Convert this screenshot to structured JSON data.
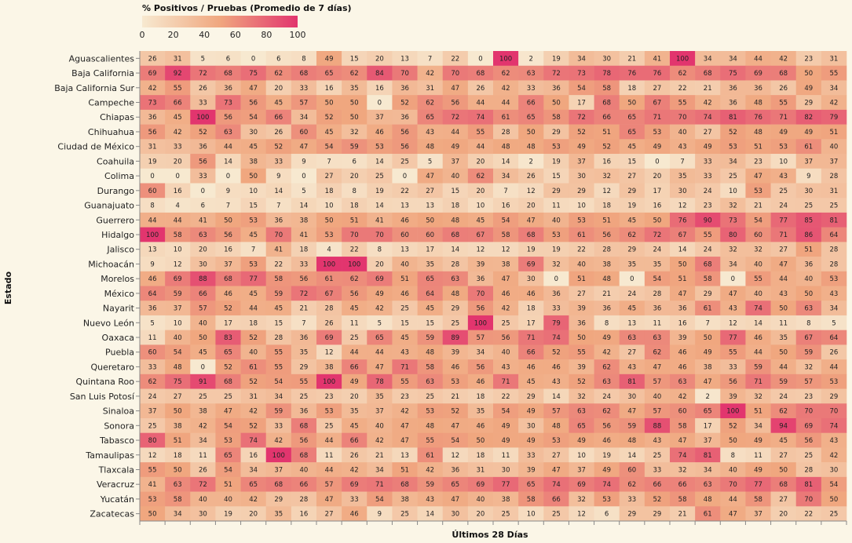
{
  "chart_data": {
    "type": "heatmap",
    "legend_title": "% Positivos / Pruebas (Promedio de 7 días)",
    "legend_ticks": [
      0,
      20,
      40,
      60,
      80,
      100
    ],
    "color_range": [
      0,
      100
    ],
    "color_low": "#f7e9d0",
    "color_high": "#e2356e",
    "xlabel": "Últimos 28 Días",
    "ylabel": "Estado",
    "rows": [
      {
        "name": "Aguascalientes",
        "values": [
          26,
          31,
          5,
          6,
          0,
          6,
          8,
          49,
          15,
          20,
          13,
          7,
          22,
          0,
          100,
          2,
          19,
          34,
          30,
          21,
          41,
          100,
          34,
          34,
          44,
          42,
          23,
          31
        ]
      },
      {
        "name": "Baja California",
        "values": [
          69,
          92,
          72,
          68,
          75,
          62,
          68,
          65,
          62,
          84,
          70,
          42,
          70,
          68,
          62,
          63,
          72,
          73,
          78,
          76,
          76,
          62,
          68,
          75,
          69,
          68,
          50,
          55
        ]
      },
      {
        "name": "Baja California Sur",
        "values": [
          42,
          55,
          26,
          36,
          47,
          20,
          33,
          16,
          35,
          16,
          36,
          31,
          47,
          26,
          42,
          33,
          36,
          54,
          58,
          18,
          27,
          22,
          21,
          36,
          36,
          26,
          49,
          34
        ]
      },
      {
        "name": "Campeche",
        "values": [
          73,
          66,
          33,
          73,
          56,
          45,
          57,
          50,
          50,
          0,
          52,
          62,
          56,
          44,
          44,
          66,
          50,
          17,
          68,
          50,
          67,
          55,
          42,
          36,
          48,
          55,
          29,
          42
        ]
      },
      {
        "name": "Chiapas",
        "values": [
          36,
          45,
          100,
          56,
          54,
          66,
          34,
          52,
          50,
          37,
          36,
          65,
          72,
          74,
          61,
          65,
          58,
          72,
          66,
          65,
          71,
          70,
          74,
          81,
          76,
          71,
          82,
          79
        ]
      },
      {
        "name": "Chihuahua",
        "values": [
          56,
          42,
          52,
          63,
          30,
          26,
          60,
          45,
          32,
          46,
          56,
          43,
          44,
          55,
          28,
          50,
          29,
          52,
          51,
          65,
          53,
          40,
          27,
          52,
          48,
          49,
          49,
          51
        ]
      },
      {
        "name": "Ciudad de México",
        "values": [
          31,
          33,
          36,
          44,
          45,
          52,
          47,
          54,
          59,
          53,
          56,
          48,
          49,
          44,
          48,
          48,
          53,
          49,
          52,
          45,
          49,
          43,
          49,
          53,
          51,
          53,
          61,
          40
        ]
      },
      {
        "name": "Coahuila",
        "values": [
          19,
          20,
          56,
          14,
          38,
          33,
          9,
          7,
          6,
          14,
          25,
          5,
          37,
          20,
          14,
          2,
          19,
          37,
          16,
          15,
          0,
          7,
          33,
          34,
          23,
          10,
          37,
          37
        ]
      },
      {
        "name": "Colima",
        "values": [
          0,
          0,
          33,
          0,
          50,
          9,
          0,
          27,
          20,
          25,
          0,
          47,
          40,
          62,
          34,
          26,
          15,
          30,
          32,
          27,
          20,
          35,
          33,
          25,
          47,
          43,
          9,
          28
        ]
      },
      {
        "name": "Durango",
        "values": [
          60,
          16,
          0,
          9,
          10,
          14,
          5,
          18,
          8,
          19,
          22,
          27,
          15,
          20,
          7,
          12,
          29,
          29,
          12,
          29,
          17,
          30,
          24,
          10,
          53,
          25,
          30,
          31
        ]
      },
      {
        "name": "Guanajuato",
        "values": [
          8,
          4,
          6,
          7,
          15,
          7,
          14,
          10,
          18,
          14,
          13,
          13,
          18,
          10,
          16,
          20,
          11,
          10,
          18,
          19,
          16,
          12,
          23,
          32,
          21,
          24,
          25,
          25
        ]
      },
      {
        "name": "Guerrero",
        "values": [
          44,
          44,
          41,
          50,
          53,
          36,
          38,
          50,
          51,
          41,
          46,
          50,
          48,
          45,
          54,
          47,
          40,
          53,
          51,
          45,
          50,
          76,
          90,
          73,
          54,
          77,
          85,
          81
        ]
      },
      {
        "name": "Hidalgo",
        "values": [
          100,
          58,
          63,
          56,
          45,
          70,
          41,
          53,
          70,
          70,
          60,
          60,
          68,
          67,
          58,
          68,
          53,
          61,
          56,
          62,
          72,
          67,
          55,
          80,
          60,
          71,
          86,
          64
        ]
      },
      {
        "name": "Jalisco",
        "values": [
          13,
          10,
          20,
          16,
          7,
          41,
          18,
          4,
          22,
          8,
          13,
          17,
          14,
          12,
          12,
          19,
          19,
          22,
          28,
          29,
          24,
          14,
          24,
          32,
          32,
          27,
          51,
          28
        ]
      },
      {
        "name": "Michoacán",
        "values": [
          9,
          12,
          30,
          37,
          53,
          22,
          33,
          100,
          100,
          20,
          40,
          35,
          28,
          39,
          38,
          69,
          32,
          40,
          38,
          35,
          35,
          50,
          68,
          34,
          40,
          47,
          36,
          28
        ]
      },
      {
        "name": "Morelos",
        "values": [
          46,
          69,
          88,
          68,
          77,
          58,
          56,
          61,
          62,
          69,
          51,
          65,
          63,
          36,
          47,
          30,
          0,
          51,
          48,
          0,
          54,
          51,
          58,
          0,
          55,
          44,
          40,
          53
        ]
      },
      {
        "name": "México",
        "values": [
          64,
          59,
          66,
          46,
          45,
          59,
          72,
          67,
          56,
          49,
          46,
          64,
          48,
          70,
          46,
          46,
          36,
          27,
          21,
          24,
          28,
          47,
          29,
          47,
          40,
          43,
          50,
          43
        ]
      },
      {
        "name": "Nayarit",
        "values": [
          36,
          37,
          57,
          52,
          44,
          45,
          21,
          28,
          45,
          42,
          25,
          45,
          29,
          56,
          42,
          18,
          33,
          39,
          36,
          45,
          36,
          36,
          61,
          43,
          74,
          50,
          63,
          34
        ]
      },
      {
        "name": "Nuevo León",
        "values": [
          5,
          10,
          40,
          17,
          18,
          15,
          7,
          26,
          11,
          5,
          15,
          15,
          25,
          100,
          25,
          17,
          79,
          36,
          8,
          13,
          11,
          16,
          7,
          12,
          14,
          11,
          8,
          5
        ]
      },
      {
        "name": "Oaxaca",
        "values": [
          11,
          40,
          50,
          83,
          52,
          28,
          36,
          69,
          25,
          65,
          45,
          59,
          89,
          57,
          56,
          71,
          74,
          50,
          49,
          63,
          63,
          39,
          50,
          77,
          46,
          35,
          67,
          64
        ]
      },
      {
        "name": "Puebla",
        "values": [
          60,
          54,
          45,
          65,
          40,
          55,
          35,
          12,
          44,
          44,
          43,
          48,
          39,
          34,
          40,
          66,
          52,
          55,
          42,
          27,
          62,
          46,
          49,
          55,
          44,
          50,
          59,
          26
        ]
      },
      {
        "name": "Queretaro",
        "values": [
          33,
          48,
          0,
          52,
          61,
          55,
          29,
          38,
          66,
          47,
          71,
          58,
          46,
          56,
          43,
          46,
          46,
          39,
          62,
          43,
          47,
          46,
          38,
          33,
          59,
          44,
          32,
          44
        ]
      },
      {
        "name": "Quintana Roo",
        "values": [
          62,
          75,
          91,
          68,
          52,
          54,
          55,
          100,
          49,
          78,
          55,
          63,
          53,
          46,
          71,
          45,
          43,
          52,
          63,
          81,
          57,
          63,
          47,
          56,
          71,
          59,
          57,
          53
        ]
      },
      {
        "name": "San Luis Potosí",
        "values": [
          24,
          27,
          25,
          25,
          31,
          34,
          25,
          23,
          20,
          35,
          23,
          25,
          21,
          18,
          22,
          29,
          14,
          32,
          24,
          30,
          40,
          42,
          2,
          39,
          32,
          24,
          23,
          29
        ]
      },
      {
        "name": "Sinaloa",
        "values": [
          37,
          50,
          38,
          47,
          42,
          59,
          36,
          53,
          35,
          37,
          42,
          53,
          52,
          35,
          54,
          49,
          57,
          63,
          62,
          47,
          57,
          60,
          65,
          100,
          51,
          62,
          70,
          70
        ]
      },
      {
        "name": "Sonora",
        "values": [
          25,
          38,
          42,
          54,
          52,
          33,
          68,
          25,
          45,
          40,
          47,
          48,
          47,
          46,
          49,
          30,
          48,
          65,
          56,
          59,
          88,
          58,
          17,
          52,
          34,
          94,
          69,
          74
        ]
      },
      {
        "name": "Tabasco",
        "values": [
          80,
          51,
          34,
          53,
          74,
          42,
          56,
          44,
          66,
          42,
          47,
          55,
          54,
          50,
          49,
          49,
          53,
          49,
          46,
          48,
          43,
          47,
          37,
          50,
          49,
          45,
          56,
          43
        ]
      },
      {
        "name": "Tamaulipas",
        "values": [
          12,
          18,
          11,
          65,
          16,
          100,
          68,
          11,
          26,
          21,
          13,
          61,
          12,
          18,
          11,
          33,
          27,
          10,
          19,
          14,
          25,
          74,
          81,
          8,
          11,
          27,
          25,
          42
        ]
      },
      {
        "name": "Tlaxcala",
        "values": [
          55,
          50,
          26,
          54,
          34,
          37,
          40,
          44,
          42,
          34,
          51,
          42,
          36,
          31,
          30,
          39,
          47,
          37,
          49,
          60,
          33,
          32,
          34,
          40,
          49,
          50,
          28,
          30
        ]
      },
      {
        "name": "Veracruz",
        "values": [
          41,
          63,
          72,
          51,
          65,
          68,
          66,
          57,
          69,
          71,
          68,
          59,
          65,
          69,
          77,
          65,
          74,
          69,
          74,
          62,
          66,
          66,
          63,
          70,
          77,
          68,
          81,
          54
        ]
      },
      {
        "name": "Yucatán",
        "values": [
          53,
          58,
          40,
          40,
          42,
          29,
          28,
          47,
          33,
          54,
          38,
          43,
          47,
          40,
          38,
          58,
          66,
          32,
          53,
          33,
          52,
          58,
          48,
          44,
          58,
          27,
          70,
          50
        ]
      },
      {
        "name": "Zacatecas",
        "values": [
          50,
          34,
          30,
          19,
          20,
          35,
          16,
          27,
          46,
          9,
          25,
          14,
          30,
          20,
          25,
          10,
          25,
          12,
          6,
          29,
          29,
          21,
          61,
          47,
          37,
          20,
          22,
          25
        ]
      }
    ]
  }
}
